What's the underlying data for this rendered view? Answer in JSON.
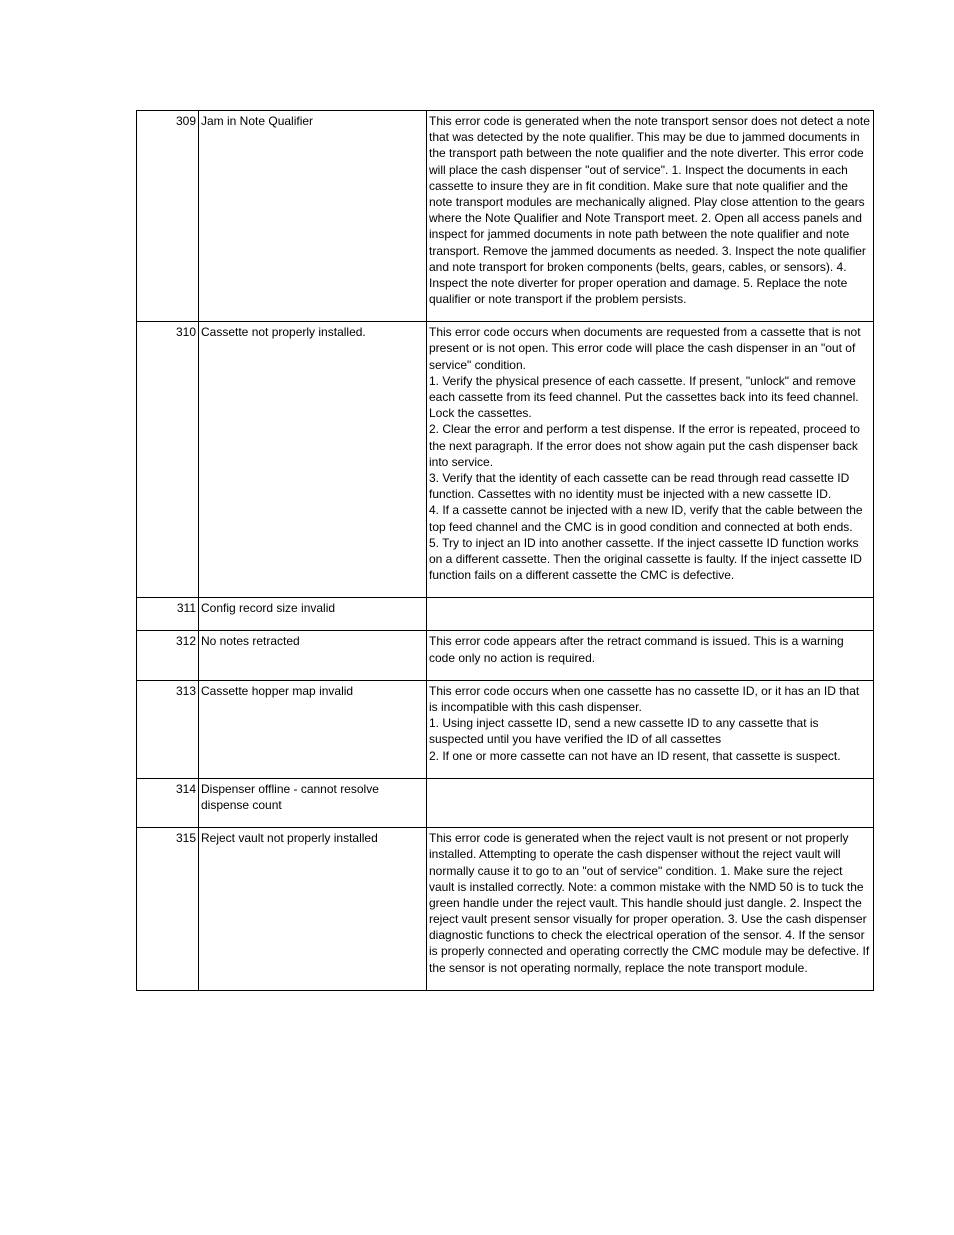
{
  "table": {
    "rows": [
      {
        "code": "309",
        "name": "Jam in Note Qualifier",
        "desc": "This error code is generated when the note transport sensor does not detect a note that was detected by the note qualifier.  This may be due to jammed documents in the transport path between the note qualifier and the note diverter.  This error code will place the cash dispenser \"out of service\".  1.  Inspect the documents in each cassette to insure they are in fit condition.  Make sure that note qualifier and the note transport modules are mechanically aligned.  Play close attention to the gears where the Note Qualifier and Note Transport meet.  2.  Open all access panels and inspect for jammed documents in note path between the note qualifier and note transport.  Remove the jammed documents as needed.  3.  Inspect the note qualifier and note transport for broken components (belts, gears, cables, or sensors).  4.  Inspect the note diverter for proper operation and damage.  5.  Replace the note qualifier or note transport if the problem persists."
      },
      {
        "code": "310",
        "name": "Cassette not properly installed.",
        "desc": "This error code occurs when documents are requested from a cassette that is not present or is not open.  This error code will place the cash dispenser in an \"out of service\" condition.\n1.  Verify the physical presence of each cassette.  If present, \"unlock\" and remove each cassette from its feed channel.  Put the cassettes back into its feed channel.  Lock the cassettes.\n2.  Clear the error and perform a test dispense.  If the error is repeated, proceed to the next paragraph.  If the error does not show again put the cash dispenser back into service.\n3.  Verify that the identity of each cassette can be read through read cassette ID function.  Cassettes with no identity must be injected with a new cassette ID.\n4.  If a cassette cannot be injected with a new ID, verify that the cable between the top feed channel and the CMC is in good condition and connected at both ends.\n5.  Try to inject an ID into another cassette.  If the inject cassette ID function works on a different cassette.  Then the original cassette is faulty.  If the inject cassette ID function fails on a different cassette the CMC is defective."
      },
      {
        "code": "311",
        "name": "Config record size invalid",
        "desc": ""
      },
      {
        "code": "312",
        "name": "No notes retracted",
        "desc": "This error code appears after the retract command is issued.  This is a warning code only no action is required."
      },
      {
        "code": "313",
        "name": "Cassette hopper map invalid",
        "desc": "This error code occurs when one cassette has no cassette ID, or it has an ID that is incompatible with this cash dispenser.\n1.  Using inject cassette ID, send a new cassette ID to any cassette that is suspected until you have verified the ID of all cassettes\n2.  If one or more cassette can not have an ID resent, that cassette is suspect."
      },
      {
        "code": "314",
        "name": "Dispenser offline - cannot resolve dispense count",
        "desc": ""
      },
      {
        "code": "315",
        "name": "Reject vault not properly installed",
        "desc": "This error code is generated when the reject vault is not present or not properly installed.  Attempting to operate the cash dispenser without the reject vault will normally cause it to go to an \"out of service\" condition.  1.  Make sure the reject vault is installed correctly.  Note: a common mistake with the NMD 50 is to tuck the green handle under the reject vault.  This handle should just dangle.  2.  Inspect the reject vault present sensor visually for proper operation.  3.  Use the cash dispenser diagnostic functions to check the electrical operation of the sensor.  4.  If the sensor is properly connected and operating correctly the CMC module may be defective.  If the sensor is not operating normally, replace the note transport module."
      }
    ]
  }
}
